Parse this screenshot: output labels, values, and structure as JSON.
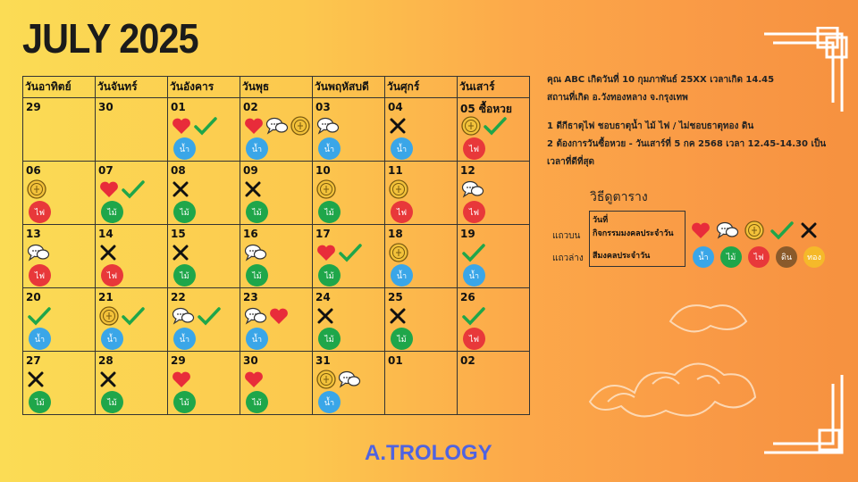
{
  "title": "JULY 2025",
  "weekdays": [
    "วันอาทิตย์",
    "วันจันทร์",
    "วันอังคาร",
    "วันพุธ",
    "วันพฤหัสบดี",
    "วันศุกร์",
    "วันเสาร์"
  ],
  "weeks": [
    [
      {
        "day": "29",
        "icons": [],
        "el": ""
      },
      {
        "day": "30",
        "icons": [],
        "el": ""
      },
      {
        "day": "01",
        "icons": [
          "heart",
          "check"
        ],
        "el": "water"
      },
      {
        "day": "02",
        "icons": [
          "heart",
          "chat",
          "coin"
        ],
        "el": "water"
      },
      {
        "day": "03",
        "icons": [
          "chat"
        ],
        "el": "water"
      },
      {
        "day": "04",
        "icons": [
          "cross"
        ],
        "el": "water"
      },
      {
        "day": "05",
        "note": "ซื้อหวย",
        "icons": [
          "coin",
          "check"
        ],
        "el": "fire"
      }
    ],
    [
      {
        "day": "06",
        "icons": [
          "coin"
        ],
        "el": "fire"
      },
      {
        "day": "07",
        "icons": [
          "heart",
          "check"
        ],
        "el": "wood"
      },
      {
        "day": "08",
        "icons": [
          "cross"
        ],
        "el": "wood"
      },
      {
        "day": "09",
        "icons": [
          "cross"
        ],
        "el": "wood"
      },
      {
        "day": "10",
        "icons": [
          "coin"
        ],
        "el": "wood"
      },
      {
        "day": "11",
        "icons": [
          "coin"
        ],
        "el": "fire"
      },
      {
        "day": "12",
        "icons": [
          "chat"
        ],
        "el": "fire"
      }
    ],
    [
      {
        "day": "13",
        "icons": [
          "chat"
        ],
        "el": "fire"
      },
      {
        "day": "14",
        "icons": [
          "cross"
        ],
        "el": "fire"
      },
      {
        "day": "15",
        "icons": [
          "cross"
        ],
        "el": "wood"
      },
      {
        "day": "16",
        "icons": [
          "chat"
        ],
        "el": "wood"
      },
      {
        "day": "17",
        "icons": [
          "heart",
          "check"
        ],
        "el": "wood"
      },
      {
        "day": "18",
        "icons": [
          "coin"
        ],
        "el": "water"
      },
      {
        "day": "19",
        "icons": [
          "check"
        ],
        "el": "water"
      }
    ],
    [
      {
        "day": "20",
        "icons": [
          "check"
        ],
        "el": "water"
      },
      {
        "day": "21",
        "icons": [
          "coin",
          "check"
        ],
        "el": "water"
      },
      {
        "day": "22",
        "icons": [
          "chat",
          "check"
        ],
        "el": "water"
      },
      {
        "day": "23",
        "icons": [
          "chat",
          "heart"
        ],
        "el": "water"
      },
      {
        "day": "24",
        "icons": [
          "cross"
        ],
        "el": "wood"
      },
      {
        "day": "25",
        "icons": [
          "cross"
        ],
        "el": "wood"
      },
      {
        "day": "26",
        "icons": [
          "check"
        ],
        "el": "fire"
      }
    ],
    [
      {
        "day": "27",
        "icons": [
          "cross"
        ],
        "el": "wood"
      },
      {
        "day": "28",
        "icons": [
          "cross"
        ],
        "el": "wood"
      },
      {
        "day": "29",
        "icons": [
          "heart"
        ],
        "el": "wood"
      },
      {
        "day": "30",
        "icons": [
          "heart"
        ],
        "el": "wood"
      },
      {
        "day": "31",
        "icons": [
          "coin",
          "chat"
        ],
        "el": "water"
      },
      {
        "day": "01",
        "icons": [],
        "el": ""
      },
      {
        "day": "02",
        "icons": [],
        "el": ""
      }
    ]
  ],
  "elements": {
    "water": {
      "label": "น้ำ",
      "color": "#3aa6e8"
    },
    "wood": {
      "label": "ไม้",
      "color": "#1fa64a"
    },
    "fire": {
      "label": "ไฟ",
      "color": "#e8383a"
    },
    "earth": {
      "label": "ดิน",
      "color": "#8a5a2b"
    },
    "gold": {
      "label": "ทอง",
      "color": "#f5b92a"
    }
  },
  "info": {
    "line1": "คุณ ABC เกิดวันที่ 10 กุมภาพันธ์ 25XX เวลาเกิด 14.45",
    "line2": "สถานที่เกิด อ.วังทองหลาง จ.กรุงเทพ",
    "line3": "1 ดีกีธาตุไฟ ชอบธาตุน้ำ ไม้ ไฟ / ไม่ชอบธาตุทอง ดิน",
    "line4": "2 ต้องการวันซื้อหวย - วันเสาร์ที่ 5 กค 2568 เวลา 12.45-14.30 เป็น",
    "line5": "เวลาที่ดีที่สุด"
  },
  "legend": {
    "title": "วิธีดูตาราง",
    "row_top": "แถวบน",
    "row_bottom": "แถวล่าง",
    "box_day": "วันที่",
    "box_activity": "กิจกรรมมงคลประจำวัน",
    "box_color": "สีมงคลประจำวัน",
    "icons": [
      "heart",
      "chat",
      "coin",
      "check",
      "cross"
    ],
    "elements": [
      "water",
      "wood",
      "fire",
      "earth",
      "gold"
    ]
  },
  "brand": "A.TROLOGY"
}
